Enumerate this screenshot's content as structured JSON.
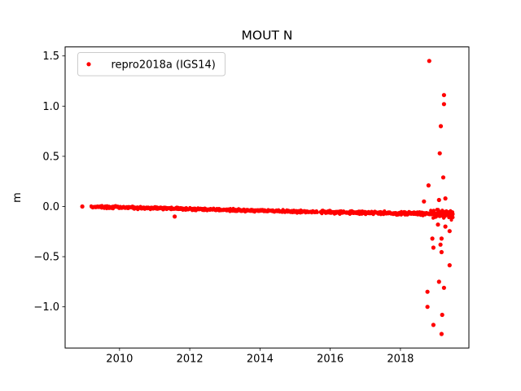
{
  "title": "MOUT N",
  "ylabel": "m",
  "legend": {
    "label": "repro2018a (IGS14)",
    "marker_color": "#ff0000",
    "position": "upper left"
  },
  "colors": {
    "marker": "#ff0000",
    "text": "#000000",
    "spine": "#000000",
    "legend_border": "#cccccc",
    "background": "#ffffff"
  },
  "chart_data": {
    "type": "scatter",
    "title": "MOUT N",
    "xlabel": "",
    "ylabel": "m",
    "grid": false,
    "legend_position": "upper left",
    "xlim": [
      2008.45,
      2019.95
    ],
    "ylim": [
      -1.41,
      1.59
    ],
    "xticks": [
      2010,
      2012,
      2014,
      2016,
      2018
    ],
    "yticks": [
      -1.0,
      -0.5,
      0.0,
      0.5,
      1.0,
      1.5
    ],
    "series": [
      {
        "name": "repro2018a (IGS14)",
        "color": "#ff0000",
        "marker": "dot",
        "description": "Dense daily position time series: near-linear drift from 0.00 m in 2009 to about -0.08 m in 2019.5, with a short data gap near 2015.7 and large scatter outliers near 2019.",
        "band_segments": [
          {
            "x_start": 2009.19,
            "x_end": 2015.63,
            "y_start": -0.002,
            "y_end": -0.055,
            "points": 700,
            "noise": 0.006
          },
          {
            "x_start": 2015.72,
            "x_end": 2019.5,
            "y_start": -0.056,
            "y_end": -0.076,
            "points": 430,
            "noise": 0.008
          }
        ],
        "end_cluster": {
          "x_start": 2018.85,
          "x_end": 2019.5,
          "y_start": -0.07,
          "y_end": -0.08,
          "points": 70,
          "noise": 0.022
        },
        "isolated_points": [
          [
            2008.94,
            0.0
          ],
          [
            2011.57,
            -0.1
          ],
          [
            2018.82,
            1.45
          ],
          [
            2019.24,
            1.11
          ],
          [
            2019.24,
            1.02
          ],
          [
            2019.15,
            0.8
          ],
          [
            2019.12,
            0.53
          ],
          [
            2019.22,
            0.29
          ],
          [
            2018.8,
            0.21
          ],
          [
            2019.1,
            0.065
          ],
          [
            2019.28,
            0.08
          ],
          [
            2018.67,
            0.05
          ],
          [
            2019.07,
            -0.18
          ],
          [
            2019.28,
            -0.2
          ],
          [
            2019.4,
            -0.245
          ],
          [
            2018.91,
            -0.32
          ],
          [
            2019.17,
            -0.32
          ],
          [
            2019.14,
            -0.38
          ],
          [
            2018.94,
            -0.41
          ],
          [
            2019.17,
            -0.455
          ],
          [
            2019.4,
            -0.585
          ],
          [
            2019.1,
            -0.75
          ],
          [
            2019.24,
            -0.81
          ],
          [
            2018.77,
            -0.85
          ],
          [
            2018.77,
            -1.0
          ],
          [
            2019.19,
            -1.08
          ],
          [
            2018.94,
            -1.18
          ],
          [
            2019.17,
            -1.27
          ]
        ]
      }
    ]
  }
}
